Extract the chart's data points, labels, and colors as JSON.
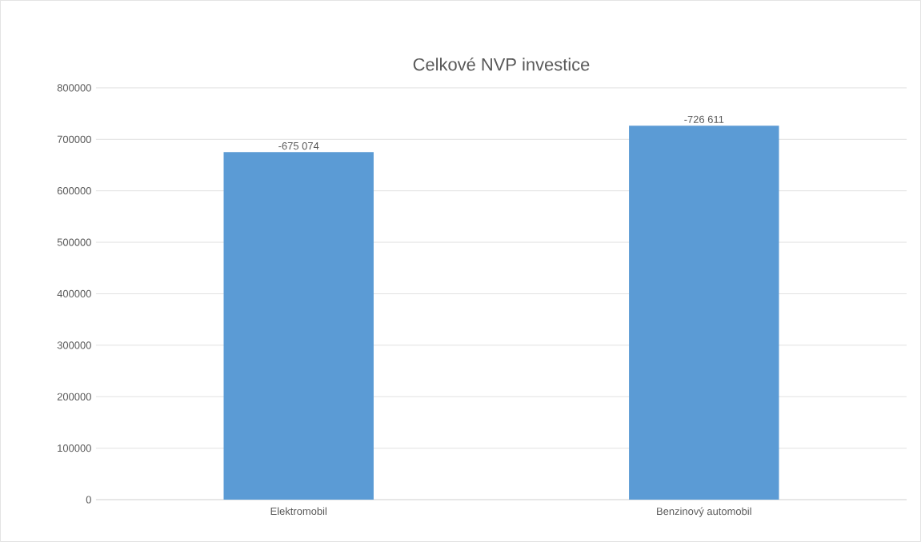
{
  "chart_data": {
    "type": "bar",
    "title": "Celkové NVP investice",
    "categories": [
      "Elektromobil",
      "Benzinový automobil"
    ],
    "values": [
      675074,
      726611
    ],
    "annotations": [
      {
        "text": "-675 074",
        "x": "Elektromobil",
        "y": 675074
      },
      {
        "text": "-726 611",
        "x": "Benzinový automobil",
        "y": 726611
      }
    ],
    "color": "#5b9bd5",
    "ylim": [
      0,
      800000
    ],
    "yticks": [
      0,
      100000,
      200000,
      300000,
      400000,
      500000,
      600000,
      700000,
      800000
    ],
    "grid": "y"
  }
}
